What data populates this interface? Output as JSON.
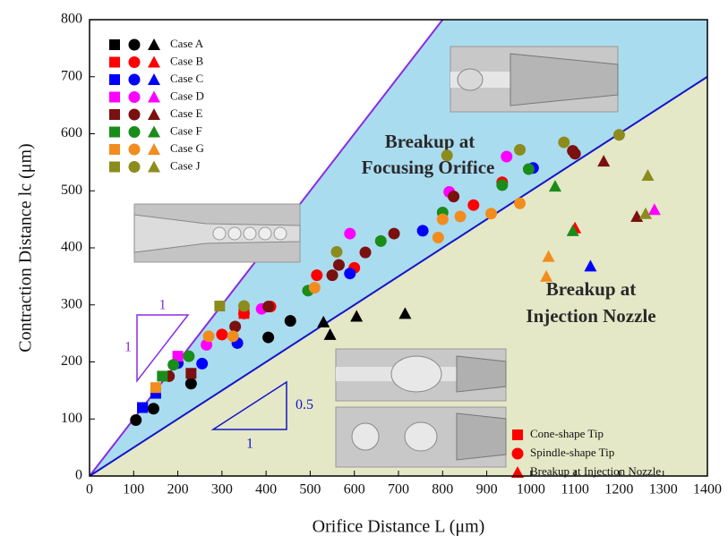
{
  "chart_data": {
    "type": "scatter",
    "x_label": "Orifice Distance L (μm)",
    "y_label": "Contraction Distance lc (μm)",
    "xlim": [
      0,
      1400
    ],
    "xticks": [
      0,
      100,
      200,
      300,
      400,
      500,
      600,
      700,
      800,
      900,
      1000,
      1100,
      1200,
      1300,
      1400
    ],
    "ylim": [
      0,
      800
    ],
    "yticks": [
      0,
      100,
      200,
      300,
      400,
      500,
      600,
      700,
      800
    ],
    "region_colors": [
      "#aadcf0",
      "#e4e8c6"
    ],
    "slope_lines": [
      {
        "rise": 1,
        "run": 1,
        "color": "#8a2be2"
      },
      {
        "rise": 0.5,
        "run": 1,
        "color": "#1414c8"
      }
    ],
    "annotations": [
      "Breakup at",
      "Focusing Orifice",
      "Breakup at",
      "Injection Nozzle"
    ],
    "shape_legend": [
      "Cone-shape Tip",
      "Spindle-shape Tip",
      "Breakup at Injection Nozzle"
    ],
    "series": [
      {
        "name": "Case A",
        "color": "#000000",
        "cone": {
          "x": [
            120
          ],
          "y": [
            120
          ]
        },
        "spindle": {
          "x": [
            105,
            145,
            230,
            405,
            455
          ],
          "y": [
            98,
            118,
            162,
            243,
            272
          ]
        },
        "nozzle": {
          "x": [
            530,
            545,
            605,
            715
          ],
          "y": [
            270,
            248,
            280,
            285
          ]
        }
      },
      {
        "name": "Case B",
        "color": "#ff0000",
        "cone": {
          "x": [
            350
          ],
          "y": [
            285
          ]
        },
        "spindle": {
          "x": [
            300,
            350,
            410,
            515,
            600,
            870,
            935
          ],
          "y": [
            248,
            285,
            297,
            352,
            365,
            475,
            515
          ]
        },
        "nozzle": {
          "x": [
            1100
          ],
          "y": [
            435
          ]
        }
      },
      {
        "name": "Case C",
        "color": "#0000ff",
        "cone": {
          "x": [
            120,
            150
          ],
          "y": [
            120,
            145
          ]
        },
        "spindle": {
          "x": [
            200,
            255,
            335,
            590,
            755,
            1005
          ],
          "y": [
            198,
            197,
            233,
            355,
            430,
            540
          ]
        },
        "nozzle": {
          "x": [
            1135
          ],
          "y": [
            368
          ]
        }
      },
      {
        "name": "Case D",
        "color": "#ff00ff",
        "cone": {
          "x": [
            200
          ],
          "y": [
            210
          ]
        },
        "spindle": {
          "x": [
            265,
            390,
            590,
            815,
            945
          ],
          "y": [
            230,
            293,
            425,
            498,
            560
          ]
        },
        "nozzle": {
          "x": [
            1280
          ],
          "y": [
            467
          ]
        }
      },
      {
        "name": "Case E",
        "color": "#7b1010",
        "cone": {
          "x": [
            230
          ],
          "y": [
            180
          ]
        },
        "spindle": {
          "x": [
            180,
            330,
            405,
            550,
            565,
            625,
            690,
            825,
            1095,
            1100
          ],
          "y": [
            175,
            262,
            297,
            352,
            370,
            392,
            425,
            490,
            570,
            565
          ]
        },
        "nozzle": {
          "x": [
            1165,
            1240
          ],
          "y": [
            552,
            455
          ]
        }
      },
      {
        "name": "Case F",
        "color": "#1a8c1a",
        "cone": {
          "x": [
            165
          ],
          "y": [
            175
          ]
        },
        "spindle": {
          "x": [
            190,
            225,
            495,
            660,
            800,
            935,
            995
          ],
          "y": [
            195,
            210,
            325,
            412,
            462,
            510,
            538
          ]
        },
        "nozzle": {
          "x": [
            1055,
            1095
          ],
          "y": [
            508,
            430
          ]
        }
      },
      {
        "name": "Case G",
        "color": "#f28c1e",
        "cone": {
          "x": [
            150
          ],
          "y": [
            155
          ]
        },
        "spindle": {
          "x": [
            270,
            325,
            510,
            790,
            800,
            840,
            910,
            975
          ],
          "y": [
            245,
            245,
            330,
            418,
            450,
            455,
            460,
            478
          ]
        },
        "nozzle": {
          "x": [
            1035,
            1040
          ],
          "y": [
            350,
            385
          ]
        }
      },
      {
        "name": "Case J",
        "color": "#8c8c1e",
        "cone": {
          "x": [
            295
          ],
          "y": [
            298
          ]
        },
        "spindle": {
          "x": [
            350,
            560,
            810,
            975,
            1075,
            1200
          ],
          "y": [
            298,
            393,
            562,
            572,
            585,
            598
          ]
        },
        "nozzle": {
          "x": [
            1260,
            1265
          ],
          "y": [
            460,
            527
          ]
        }
      }
    ]
  }
}
